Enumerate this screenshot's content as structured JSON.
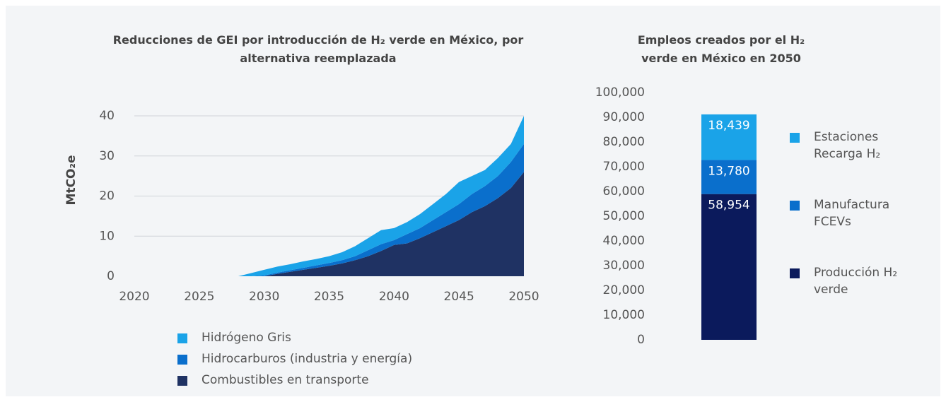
{
  "chart_data": [
    {
      "type": "area",
      "title": "Reducciones de GEI por introducción de H₂ verde en México, por alternativa reemplazada",
      "y_label": "MtCO₂e",
      "x": [
        2020,
        2021,
        2022,
        2023,
        2024,
        2025,
        2026,
        2027,
        2028,
        2029,
        2030,
        2031,
        2032,
        2033,
        2034,
        2035,
        2036,
        2037,
        2038,
        2039,
        2040,
        2041,
        2042,
        2043,
        2044,
        2045,
        2046,
        2047,
        2048,
        2049,
        2050
      ],
      "series": [
        {
          "name": "Hidrógeno Gris",
          "color": "#1aa3e8",
          "values": [
            0,
            0,
            0,
            0,
            0,
            0,
            0,
            0,
            0,
            0.8,
            1.4,
            1.5,
            1.5,
            1.6,
            1.6,
            1.7,
            2,
            2.5,
            3,
            3.5,
            3,
            3,
            3.5,
            4,
            4.5,
            5.5,
            4.5,
            4,
            4.5,
            4.5,
            7
          ]
        },
        {
          "name": "Hidrocarburos (industria y energía)",
          "color": "#0a6fcc",
          "values": [
            0,
            0,
            0,
            0,
            0,
            0,
            0,
            0,
            0,
            0,
            0.2,
            0.3,
            0.4,
            0.5,
            0.6,
            0.7,
            0.8,
            1,
            1.5,
            1.7,
            1.2,
            2.3,
            2.5,
            3,
            3.5,
            4,
            4.5,
            5,
            5.5,
            6.5,
            7
          ]
        },
        {
          "name": "Combustibles en transporte",
          "color": "#1f3263",
          "values": [
            0,
            0,
            0,
            0,
            0,
            0,
            0,
            0,
            0,
            0,
            0,
            0.6,
            1.1,
            1.6,
            2.1,
            2.6,
            3.2,
            4,
            5,
            6.3,
            7.8,
            8.2,
            9.5,
            11,
            12.5,
            14,
            16,
            17.5,
            19.5,
            22,
            26
          ]
        }
      ],
      "xlim": [
        2020,
        2050
      ],
      "xticks": [
        2020,
        2025,
        2030,
        2035,
        2040,
        2045,
        2050
      ],
      "ylim": [
        0,
        40
      ],
      "yticks": [
        0,
        10,
        20,
        30,
        40
      ],
      "grid": true,
      "stacked": true
    },
    {
      "type": "stacked_bar",
      "title": "Empleos creados por el H₂ verde en México en 2050",
      "series": [
        {
          "name": "Producción H₂ verde",
          "color": "#0b1a5c",
          "values": [
            58954
          ],
          "value_labels": [
            "58,954"
          ]
        },
        {
          "name": "Manufactura FCEVs",
          "color": "#0a6fcc",
          "values": [
            13780
          ],
          "value_labels": [
            "13,780"
          ]
        },
        {
          "name": "Estaciones Recarga H₂",
          "color": "#1aa3e8",
          "values": [
            18439
          ],
          "value_labels": [
            "18,439"
          ]
        }
      ],
      "ylim": [
        0,
        100000
      ],
      "yticks": [
        0,
        {
          "value": 10000,
          "label": "10,000"
        },
        {
          "value": 20000,
          "label": "20,000"
        },
        {
          "value": 30000,
          "label": "30,000"
        },
        {
          "value": 40000,
          "label": "40,000"
        },
        {
          "value": 50000,
          "label": "50,000"
        },
        {
          "value": 60000,
          "label": "60,000"
        },
        {
          "value": 70000,
          "label": "70,000"
        },
        {
          "value": 80000,
          "label": "80,000"
        },
        {
          "value": 90000,
          "label": "90,000"
        },
        {
          "value": 100000,
          "label": "100,000"
        }
      ],
      "grid": false
    }
  ]
}
